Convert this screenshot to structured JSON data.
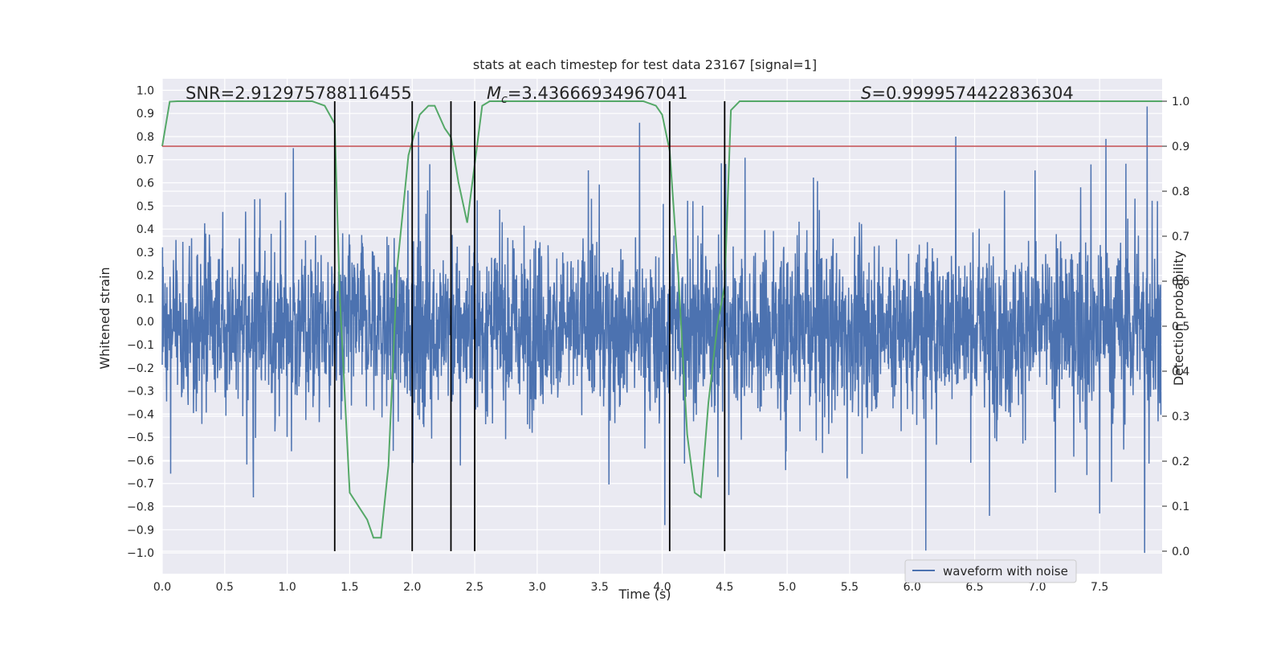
{
  "chart_data": {
    "type": "line",
    "title": "stats at each timestep for test data 23167 [signal=1]",
    "xlabel": "Time (s)",
    "ylabel_left": "Whitened strain",
    "ylabel_right": "Detection probability",
    "xlim": [
      0.0,
      8.0
    ],
    "ylim_left": [
      -1.09,
      1.05
    ],
    "ylim_right": [
      -0.05,
      1.05
    ],
    "x_ticks": [
      "0.0",
      "0.5",
      "1.0",
      "1.5",
      "2.0",
      "2.5",
      "3.0",
      "3.5",
      "4.0",
      "4.5",
      "5.0",
      "5.5",
      "6.0",
      "6.5",
      "7.0",
      "7.5"
    ],
    "y_left_ticks": [
      "1.0",
      "0.9",
      "0.8",
      "0.7",
      "0.6",
      "0.5",
      "0.4",
      "0.3",
      "0.2",
      "0.1",
      "0.0",
      "−0.1",
      "−0.2",
      "−0.3",
      "−0.4",
      "−0.5",
      "−0.6",
      "−0.7",
      "−0.8",
      "−0.9",
      "−1.0"
    ],
    "y_right_ticks": [
      "1.0",
      "0.9",
      "0.8",
      "0.7",
      "0.6",
      "0.5",
      "0.4",
      "0.3",
      "0.2",
      "0.1",
      "0.0"
    ],
    "grid": true,
    "annotations": {
      "snr": "SNR=2.912975788116455",
      "mc_symbol": "M",
      "mc_sub": "c",
      "mc_value": "=3.43666934967041",
      "s_symbol": "S",
      "s_value": "=0.9999574422836304"
    },
    "legend": {
      "placement": "lower-right",
      "entries": [
        "waveform with noise"
      ]
    },
    "waveform": {
      "name": "waveform with noise",
      "color": "#4c72b0",
      "x_range": [
        0.0,
        7.99
      ],
      "approx_amplitude_band": [
        -0.45,
        0.4
      ],
      "peaks": [
        {
          "x": 7.88,
          "y": 0.93
        },
        {
          "x": 3.82,
          "y": 0.86
        },
        {
          "x": 2.05,
          "y": 0.82
        },
        {
          "x": 6.35,
          "y": 0.8
        },
        {
          "x": 7.55,
          "y": 0.79
        },
        {
          "x": 1.05,
          "y": 0.75
        },
        {
          "x": 7.86,
          "y": -1.0
        },
        {
          "x": 6.11,
          "y": -0.99
        },
        {
          "x": 4.02,
          "y": -0.88
        },
        {
          "x": 6.62,
          "y": -0.84
        },
        {
          "x": 7.5,
          "y": -0.83
        },
        {
          "x": 0.73,
          "y": -0.76
        }
      ]
    },
    "detection_probability": {
      "color": "#55a868",
      "x": [
        0.0,
        0.06,
        0.12,
        0.3,
        0.6,
        0.9,
        1.1,
        1.2,
        1.3,
        1.38,
        1.42,
        1.5,
        1.57,
        1.64,
        1.69,
        1.75,
        1.81,
        1.88,
        1.97,
        2.06,
        2.13,
        2.18,
        2.26,
        2.31,
        2.37,
        2.44,
        2.5,
        2.56,
        2.62,
        2.8,
        3.2,
        3.6,
        3.85,
        3.95,
        4.0,
        4.06,
        4.13,
        4.2,
        4.26,
        4.31,
        4.37,
        4.44,
        4.5,
        4.55,
        4.62,
        4.75,
        5.2,
        5.6,
        6.2,
        7.0,
        8.0
      ],
      "y": [
        0.9,
        0.999,
        1.0,
        1.0,
        1.0,
        1.0,
        1.0,
        1.0,
        0.99,
        0.95,
        0.57,
        0.13,
        0.1,
        0.07,
        0.03,
        0.03,
        0.19,
        0.63,
        0.88,
        0.97,
        0.99,
        0.99,
        0.94,
        0.92,
        0.82,
        0.73,
        0.86,
        0.99,
        1.0,
        1.0,
        1.0,
        1.0,
        1.0,
        0.99,
        0.97,
        0.89,
        0.61,
        0.26,
        0.13,
        0.12,
        0.33,
        0.5,
        0.59,
        0.98,
        1.0,
        1.0,
        1.0,
        1.0,
        1.0,
        1.0,
        1.0
      ]
    },
    "threshold": {
      "y_right": 0.9,
      "color": "#c44e52"
    },
    "event_markers_x": [
      1.38,
      2.0,
      2.31,
      2.5,
      4.06,
      4.5
    ],
    "colors": {
      "background": "#eaeaf2",
      "grid": "#ffffff",
      "marker": "#000000"
    }
  }
}
